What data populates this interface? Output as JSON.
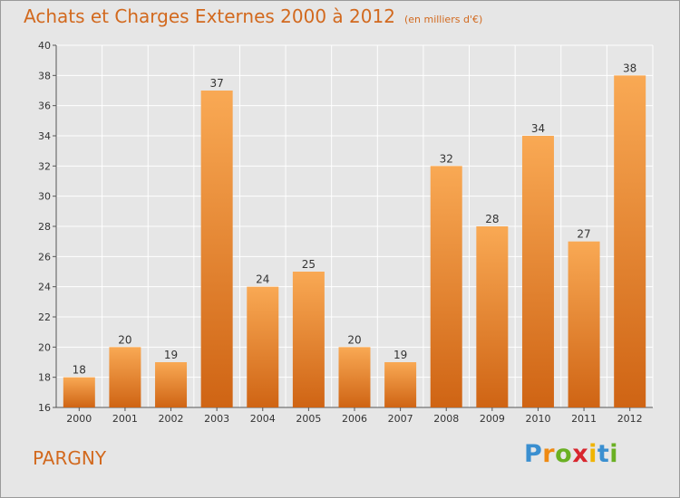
{
  "title": "Achats et Charges Externes 2000 à 2012",
  "unit": "(en milliers d'€)",
  "commune": "PARGNY",
  "logo": {
    "text": "Proxiti",
    "letters": [
      {
        "ch": "P",
        "color": "#3a8fd0"
      },
      {
        "ch": "r",
        "color": "#ef8a12"
      },
      {
        "ch": "o",
        "color": "#6ab023"
      },
      {
        "ch": "x",
        "color": "#d8262e"
      },
      {
        "ch": "i",
        "color": "#f0b400"
      },
      {
        "ch": "t",
        "color": "#3a8fd0"
      },
      {
        "ch": "i",
        "color": "#6ab023"
      }
    ]
  },
  "colors": {
    "bar_top": "#f9a954",
    "bar_bottom": "#cf6414",
    "title": "#d2691e",
    "grid": "#ffffff",
    "plot_bg": "#e6e6e6"
  },
  "chart_data": {
    "type": "bar",
    "categories": [
      "2000",
      "2001",
      "2002",
      "2003",
      "2004",
      "2005",
      "2006",
      "2007",
      "2008",
      "2009",
      "2010",
      "2011",
      "2012"
    ],
    "values": [
      18,
      20,
      19,
      37,
      24,
      25,
      20,
      19,
      32,
      28,
      34,
      27,
      38
    ],
    "yticks": [
      16,
      18,
      20,
      22,
      24,
      26,
      28,
      30,
      32,
      34,
      36,
      38,
      40
    ],
    "ylim": [
      16,
      40
    ],
    "grid": true,
    "xlabel": "",
    "ylabel": ""
  }
}
